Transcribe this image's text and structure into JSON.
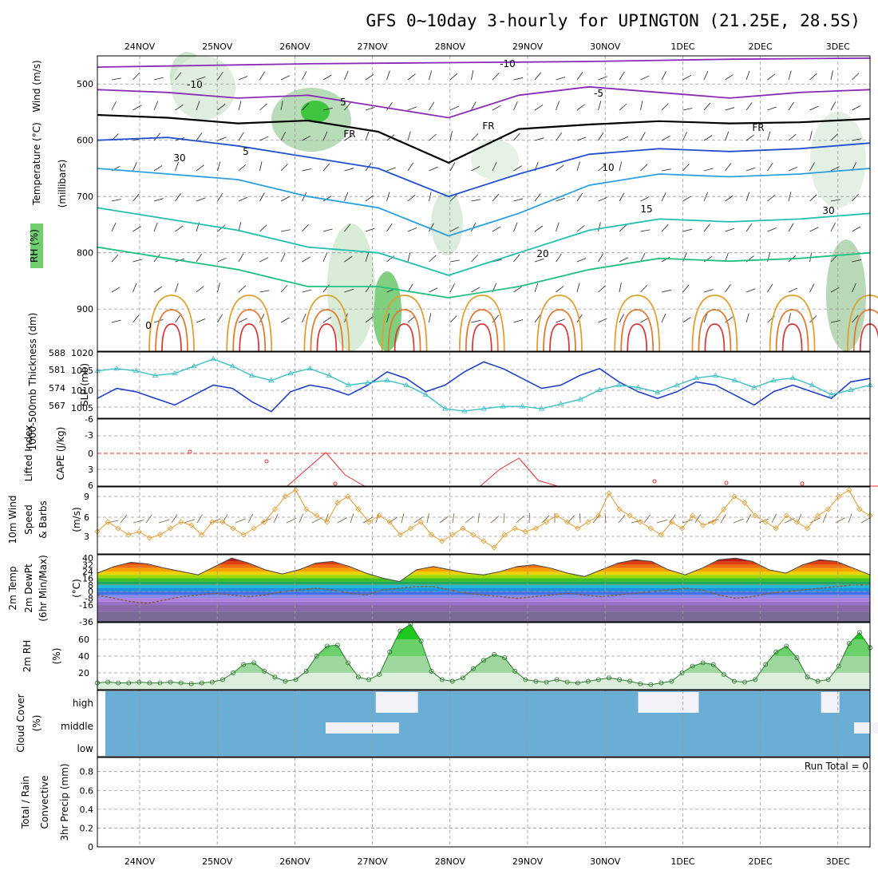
{
  "title": "GFS 0~10day 3-hourly for UPINGTON (21.25E, 28.5S)",
  "colors": {
    "rh_green": "#2fae34",
    "cloud_blue": "#6aaed6",
    "lifted_red": "#e03232",
    "wind_orange": "#e59a2b",
    "slp_blue": "#2040c8",
    "thick_cyan": "#3cc0c8",
    "purple": "#8a2bb8"
  },
  "chart_data": [
    {
      "id": "sounding",
      "type": "contour",
      "x_ticks": [
        "24NOV",
        "25NOV",
        "26NOV",
        "27NOV",
        "28NOV",
        "29NOV",
        "30NOV",
        "1DEC",
        "2DEC",
        "3DEC"
      ],
      "y_ticks": [
        500,
        600,
        700,
        800,
        900
      ],
      "ylabel": "(millibars)",
      "legend_labels": [
        "RH (%)",
        "Temperature (°C)",
        "Wind (m/s)"
      ],
      "contour_labels": [
        "-10",
        "-5",
        "FR",
        "5",
        "10",
        "15",
        "20",
        "30"
      ],
      "temperature_levels": [
        {
          "level": -10,
          "color": "#8a2bb8",
          "values": [
            470,
            468,
            466,
            464,
            463,
            462,
            461,
            460,
            458,
            456,
            455,
            454
          ]
        },
        {
          "level": -5,
          "color": "#8a2bb8",
          "values": [
            510,
            515,
            525,
            520,
            540,
            560,
            520,
            505,
            515,
            525,
            515,
            510
          ]
        },
        {
          "level": 0,
          "color": "#000000",
          "values": [
            555,
            560,
            570,
            565,
            585,
            640,
            580,
            572,
            566,
            570,
            568,
            562
          ]
        },
        {
          "level": 5,
          "color": "#2050d0",
          "values": [
            600,
            595,
            610,
            630,
            650,
            700,
            660,
            625,
            615,
            620,
            615,
            605
          ]
        },
        {
          "level": 10,
          "color": "#2aa0e0",
          "values": [
            650,
            660,
            670,
            700,
            720,
            770,
            730,
            680,
            660,
            665,
            660,
            650
          ]
        },
        {
          "level": 15,
          "color": "#20c0b0",
          "values": [
            720,
            740,
            760,
            790,
            800,
            840,
            800,
            760,
            740,
            745,
            740,
            730
          ]
        },
        {
          "level": 20,
          "color": "#20c080",
          "values": [
            790,
            810,
            830,
            860,
            860,
            880,
            860,
            830,
            810,
            815,
            810,
            800
          ]
        }
      ]
    },
    {
      "id": "slp-thickness",
      "type": "line",
      "left_label": "1000-500mb Thickness (dm)",
      "right_label": "SLP (mb)",
      "left_ticks": [
        "588",
        "581",
        "574",
        "567"
      ],
      "right_ticks": [
        "1020",
        "1015",
        "1010",
        "1005"
      ],
      "series": [
        {
          "name": "SLP",
          "color": "#2040c8",
          "values": [
            1008,
            1011,
            1010,
            1008,
            1006,
            1009,
            1012,
            1011,
            1007,
            1004,
            1010,
            1012,
            1011,
            1009,
            1012,
            1016,
            1014,
            1010,
            1012,
            1016,
            1019,
            1017,
            1014,
            1011,
            1012,
            1015,
            1017,
            1013,
            1010,
            1008,
            1010,
            1013,
            1012,
            1009,
            1006,
            1010,
            1012,
            1010,
            1008,
            1013,
            1014
          ]
        },
        {
          "name": "Thickness",
          "color": "#3cc0c8",
          "values": [
            582,
            583,
            582,
            580,
            581,
            584,
            587,
            584,
            580,
            578,
            581,
            583,
            580,
            576,
            577,
            578,
            576,
            572,
            566,
            565,
            566,
            567,
            567,
            566,
            568,
            570,
            574,
            576,
            575,
            573,
            576,
            579,
            580,
            578,
            575,
            578,
            579,
            576,
            572,
            574,
            576
          ]
        }
      ]
    },
    {
      "id": "cape-li",
      "type": "line",
      "left_label": "Lifted Index",
      "right_label": "CAPE (J/kg)",
      "y_ticks": [
        "-6",
        "-3",
        "0",
        "3",
        "6"
      ],
      "series": [
        {
          "name": "Lifted Index",
          "color": "#e03232",
          "values": [
            6,
            6,
            6,
            6,
            6,
            6,
            6,
            6,
            6,
            6,
            3,
            0,
            4,
            6,
            6,
            6,
            6,
            6,
            6,
            6,
            3,
            1,
            5,
            6,
            6,
            6,
            6,
            6,
            6,
            6,
            6,
            6,
            6,
            6,
            6,
            6,
            6,
            6,
            6,
            6,
            6
          ]
        }
      ]
    },
    {
      "id": "wind-10m",
      "type": "line",
      "label": "10m Wind Speed & Barbs",
      "unit": "(m/s)",
      "y_ticks": [
        "9",
        "6",
        "3"
      ],
      "series": [
        {
          "name": "10m Wind Speed",
          "color": "#e59a2b",
          "values": [
            3.5,
            5,
            4,
            3,
            3.5,
            2.5,
            3,
            4,
            5,
            4.5,
            3,
            5,
            5,
            4,
            3,
            4,
            5,
            7,
            9,
            10,
            7,
            6,
            5,
            8,
            9,
            7,
            5,
            6,
            5,
            3,
            4,
            5,
            3,
            2,
            3,
            4,
            3,
            2,
            1,
            3,
            4,
            3.5,
            4,
            5,
            6,
            5,
            4,
            5,
            6,
            9.5,
            7,
            6,
            5,
            4,
            3,
            5,
            4,
            6,
            4.5,
            5,
            7,
            9,
            8,
            6,
            5,
            4,
            6,
            5,
            4,
            6,
            7,
            9,
            10,
            7,
            6
          ]
        }
      ]
    },
    {
      "id": "temp-2m",
      "type": "area",
      "label": "2m Temp 2m DewPt (6hr Min/Max)",
      "unit": "(°C)",
      "y_ticks": [
        "40",
        "32",
        "24",
        "16",
        "8",
        "0",
        "-8",
        "-16",
        "-36"
      ],
      "series": [
        {
          "name": "Temperature",
          "color": "#000000",
          "values": [
            22,
            30,
            35,
            33,
            28,
            24,
            20,
            30,
            40,
            34,
            26,
            21,
            26,
            34,
            36,
            30,
            22,
            16,
            12,
            26,
            30,
            26,
            22,
            20,
            24,
            30,
            32,
            28,
            22,
            18,
            26,
            34,
            38,
            36,
            26,
            20,
            28,
            38,
            40,
            36,
            26,
            22,
            32,
            38,
            36,
            28,
            20
          ]
        },
        {
          "name": "DewPt",
          "color": "#7a4a2a",
          "values": [
            -4,
            -8,
            -12,
            -14,
            -10,
            -6,
            -4,
            -2,
            -4,
            -6,
            -4,
            0,
            2,
            4,
            2,
            -2,
            -4,
            2,
            4,
            6,
            6,
            2,
            -2,
            -4,
            -6,
            -8,
            -6,
            -4,
            -2,
            -4,
            -6,
            -4,
            -2,
            0,
            2,
            4,
            2,
            -4,
            -8,
            -6,
            -2,
            0,
            2,
            4,
            6,
            8,
            8
          ]
        }
      ]
    },
    {
      "id": "rh-2m",
      "type": "area",
      "label": "2m RH",
      "unit": "(%)",
      "y_ticks": [
        "60",
        "40",
        "20"
      ],
      "series": [
        {
          "name": "2m RH",
          "color": "#2fae34",
          "values": [
            8,
            9,
            8,
            8,
            9,
            8,
            8,
            9,
            8,
            7,
            8,
            9,
            12,
            20,
            30,
            32,
            22,
            15,
            10,
            12,
            22,
            40,
            52,
            53,
            32,
            15,
            12,
            18,
            45,
            70,
            78,
            58,
            22,
            12,
            10,
            14,
            25,
            35,
            42,
            38,
            22,
            12,
            10,
            9,
            12,
            9,
            8,
            10,
            12,
            14,
            12,
            10,
            7,
            6,
            8,
            10,
            20,
            28,
            32,
            30,
            18,
            10,
            9,
            12,
            30,
            45,
            52,
            38,
            15,
            10,
            12,
            28,
            55,
            68,
            50
          ]
        }
      ]
    },
    {
      "id": "cloud-cover",
      "type": "bar",
      "label": "Cloud Cover",
      "unit": "(%)",
      "y_ticks": [
        "high",
        "middle",
        "low"
      ],
      "high_blocks": [
        {
          "at": 34,
          "w": 2
        },
        {
          "at": 37,
          "w": 1
        },
        {
          "at": 67,
          "w": 2
        },
        {
          "at": 70,
          "w": 2
        },
        {
          "at": 90,
          "w": 1
        },
        {
          "at": 112,
          "w": 1
        },
        {
          "at": 119,
          "w": 2
        },
        {
          "at": 190,
          "w": 1
        },
        {
          "at": 217,
          "w": 1
        },
        {
          "at": 232,
          "w": 1
        },
        {
          "at": 237,
          "w": 1
        },
        {
          "at": 246,
          "w": 2
        }
      ],
      "middle_blocks": [
        {
          "at": 20,
          "w": 4
        },
        {
          "at": 68,
          "w": 4
        },
        {
          "at": 71,
          "w": 2
        }
      ]
    },
    {
      "id": "precip",
      "type": "bar",
      "label": "3hr Precip (mm)",
      "legend_labels": [
        "Total / Rain",
        "Convective"
      ],
      "y_ticks": [
        "0.8",
        "0.6",
        "0.4",
        "0.2",
        "0"
      ],
      "annotation": "Run Total = 0",
      "values": []
    }
  ]
}
